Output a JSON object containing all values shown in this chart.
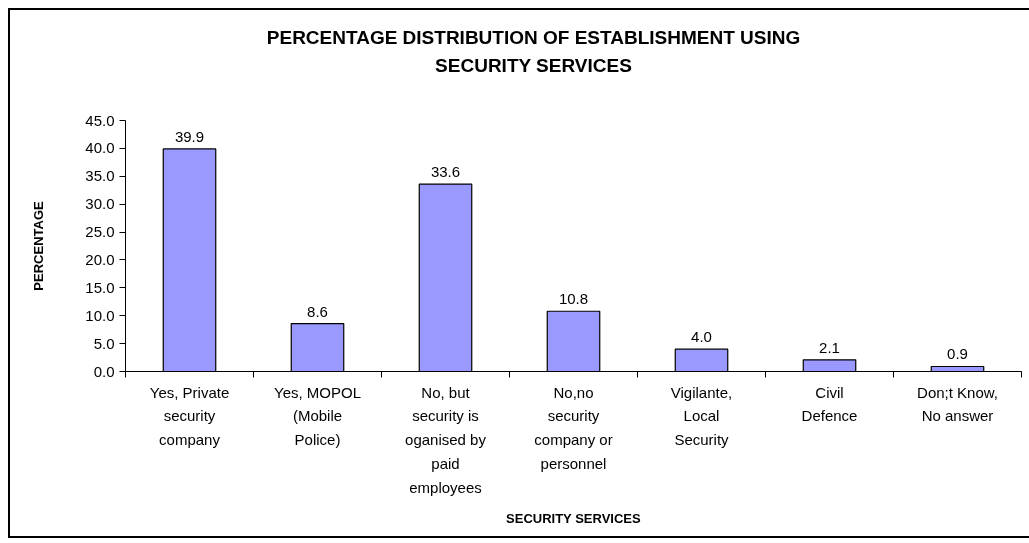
{
  "chart_data": {
    "type": "bar",
    "title": "PERCENTAGE DISTRIBUTION OF ESTABLISHMENT USING SECURITY SERVICES",
    "xlabel": "SECURITY SERVICES",
    "ylabel": "PERCENTAGE",
    "categories": [
      "Yes, Private security company",
      "Yes, MOPOL (Mobile Police)",
      "No, but security is oganised by paid employees",
      "No,no security company or personnel",
      "Vigilante, Local Security",
      "Civil Defence",
      "Don;t Know, No answer"
    ],
    "values": [
      39.9,
      8.6,
      33.6,
      10.8,
      4.0,
      2.1,
      0.9
    ],
    "value_labels": [
      "39.9",
      "8.6",
      "33.6",
      "10.8",
      "4.0",
      "2.1",
      "0.9"
    ],
    "color": "#9999ff",
    "ylim": [
      0,
      45
    ],
    "yticks": [
      {
        "value": 0,
        "label": "0.0"
      },
      {
        "value": 5,
        "label": "5.0"
      },
      {
        "value": 10,
        "label": "10.0"
      },
      {
        "value": 15,
        "label": "15.0"
      },
      {
        "value": 20,
        "label": "20.0"
      },
      {
        "value": 25,
        "label": "25.0"
      },
      {
        "value": 30,
        "label": "30.0"
      },
      {
        "value": 35,
        "label": "35.0"
      },
      {
        "value": 40,
        "label": "40.0"
      },
      {
        "value": 45,
        "label": "45.0"
      }
    ]
  }
}
